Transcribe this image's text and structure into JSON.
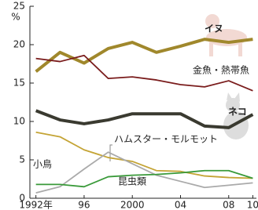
{
  "chart_data": {
    "type": "line",
    "y_unit": "%",
    "x": [
      1992,
      1994,
      1996,
      1998,
      2000,
      2002,
      2004,
      2006,
      2008,
      2010
    ],
    "xlim": [
      1991.5,
      2010.3
    ],
    "xticks": [
      {
        "value": 1992,
        "label": "1992年"
      },
      {
        "value": 1996,
        "label": "96"
      },
      2000,
      {
        "value": 2004,
        "label": "04"
      },
      {
        "value": 2008,
        "label": "08"
      },
      {
        "value": 2010,
        "label": "10"
      }
    ],
    "ylim": [
      0,
      25
    ],
    "yticks": [
      0,
      5,
      10,
      15,
      20,
      25
    ],
    "series": [
      {
        "name": "イヌ",
        "color": "#a0882c",
        "values": [
          16.5,
          19,
          17.6,
          19.5,
          20.3,
          19,
          19.8,
          20.7,
          20.3,
          20.7
        ]
      },
      {
        "name": "金魚・熱帯魚",
        "color": "#7a1c1c",
        "values": [
          18.2,
          17.8,
          18.6,
          15.6,
          15.8,
          15.4,
          14.8,
          14.5,
          15.3,
          14
        ]
      },
      {
        "name": "ネコ",
        "color": "#3a3a30",
        "values": [
          11.4,
          10.2,
          9.7,
          10.2,
          11,
          11,
          11,
          9.4,
          9.2,
          10.9
        ]
      },
      {
        "name": "小鳥",
        "color": "#c4a435",
        "values": [
          8.6,
          8,
          6.3,
          5.3,
          4.8,
          3.6,
          3.5,
          2.9,
          2.7,
          2.6
        ]
      },
      {
        "name": "ハムスター・モルモット",
        "color": "#aaaaaa",
        "values": [
          0.7,
          1.5,
          3.8,
          6,
          4.5,
          3,
          2.2,
          1.4,
          1.7,
          2
        ]
      },
      {
        "name": "昆虫類",
        "color": "#3a9a3a",
        "values": [
          1.8,
          1.8,
          1.5,
          2.8,
          3,
          3.1,
          3.3,
          3.6,
          3.6,
          2.6
        ]
      }
    ]
  }
}
